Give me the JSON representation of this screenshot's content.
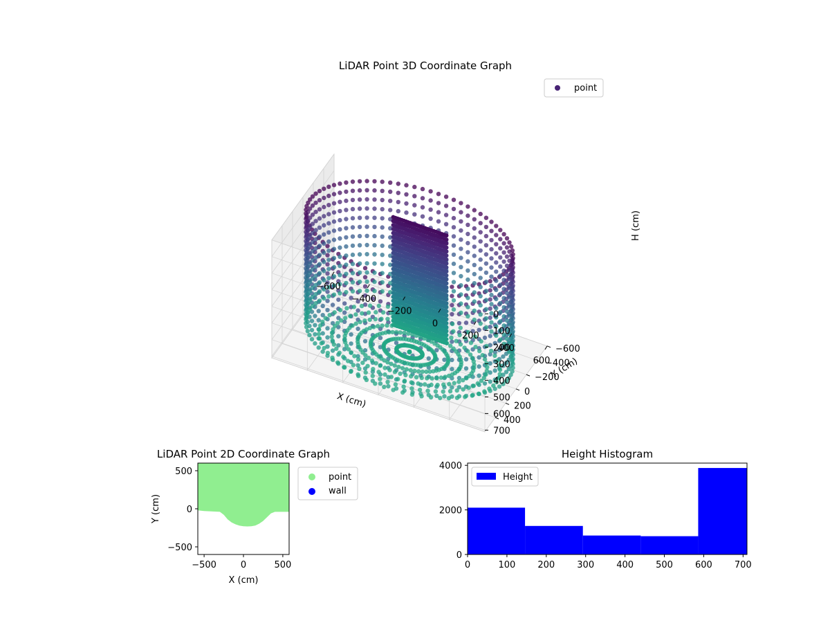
{
  "chart_data": [
    {
      "type": "scatter",
      "projection": "3d",
      "title": "LiDAR Point 3D Coordinate Graph",
      "xlabel": "X (cm)",
      "ylabel": "Y (cm)",
      "zlabel": "H (cm)",
      "xlim": [
        -600,
        600
      ],
      "ylim": [
        -600,
        600
      ],
      "x_ticks": [
        "−600",
        "−400",
        "−200",
        "0",
        "200",
        "400",
        "600"
      ],
      "y_ticks": [
        "−600",
        "−400",
        "−200",
        "0",
        "200",
        "400"
      ],
      "z_ticks": [
        "0",
        "100",
        "200",
        "300",
        "400",
        "500",
        "600",
        "700"
      ],
      "z_inverted": true,
      "grid": true,
      "colormap": "viridis",
      "legend": {
        "placement": "top-right",
        "entries": [
          {
            "label": "point",
            "color": "#482475"
          }
        ]
      },
      "description_values": {
        "outer_wall_radius_cm": 560,
        "inner_wall_approx": {
          "x_range": [
            -150,
            150
          ],
          "y": -200
        },
        "height_range_cm": [
          0,
          710
        ]
      }
    },
    {
      "type": "scatter",
      "title": "LiDAR Point 2D Coordinate Graph",
      "xlabel": "X (cm)",
      "ylabel": "Y (cm)",
      "xlim": [
        -580,
        580
      ],
      "ylim": [
        -600,
        600
      ],
      "x_ticks": [
        "−500",
        "0",
        "500"
      ],
      "y_ticks": [
        "−500",
        "0",
        "500"
      ],
      "legend": {
        "placement": "outside-right",
        "entries": [
          {
            "label": "point",
            "color": "#90ee90"
          },
          {
            "label": "wall",
            "color": "#0000ff"
          }
        ]
      },
      "region_boundary": {
        "x": [
          -580,
          -500,
          -300,
          -250,
          -200,
          -150,
          -100,
          -50,
          0,
          50,
          100,
          150,
          200,
          250,
          300,
          350,
          400,
          450,
          580
        ],
        "y": [
          -20,
          -30,
          -40,
          -80,
          -140,
          -180,
          -205,
          -222,
          -230,
          -232,
          -230,
          -220,
          -195,
          -160,
          -110,
          -60,
          -40,
          -40,
          -40
        ]
      }
    },
    {
      "type": "bar",
      "subtype": "histogram",
      "title": "Height Histogram",
      "xlabel": "",
      "ylabel": "",
      "xlim": [
        0,
        710
      ],
      "ylim": [
        0,
        4100
      ],
      "x_ticks": [
        "0",
        "100",
        "200",
        "300",
        "400",
        "500",
        "600",
        "700"
      ],
      "y_ticks": [
        "0",
        "2000",
        "4000"
      ],
      "bin_edges": [
        0,
        146,
        293,
        440,
        586,
        710
      ],
      "values": [
        2100,
        1280,
        850,
        820,
        3880
      ],
      "color": "#0000ff",
      "legend": {
        "placement": "top-left",
        "entries": [
          {
            "label": "Height",
            "color": "#0000ff"
          }
        ]
      }
    }
  ]
}
